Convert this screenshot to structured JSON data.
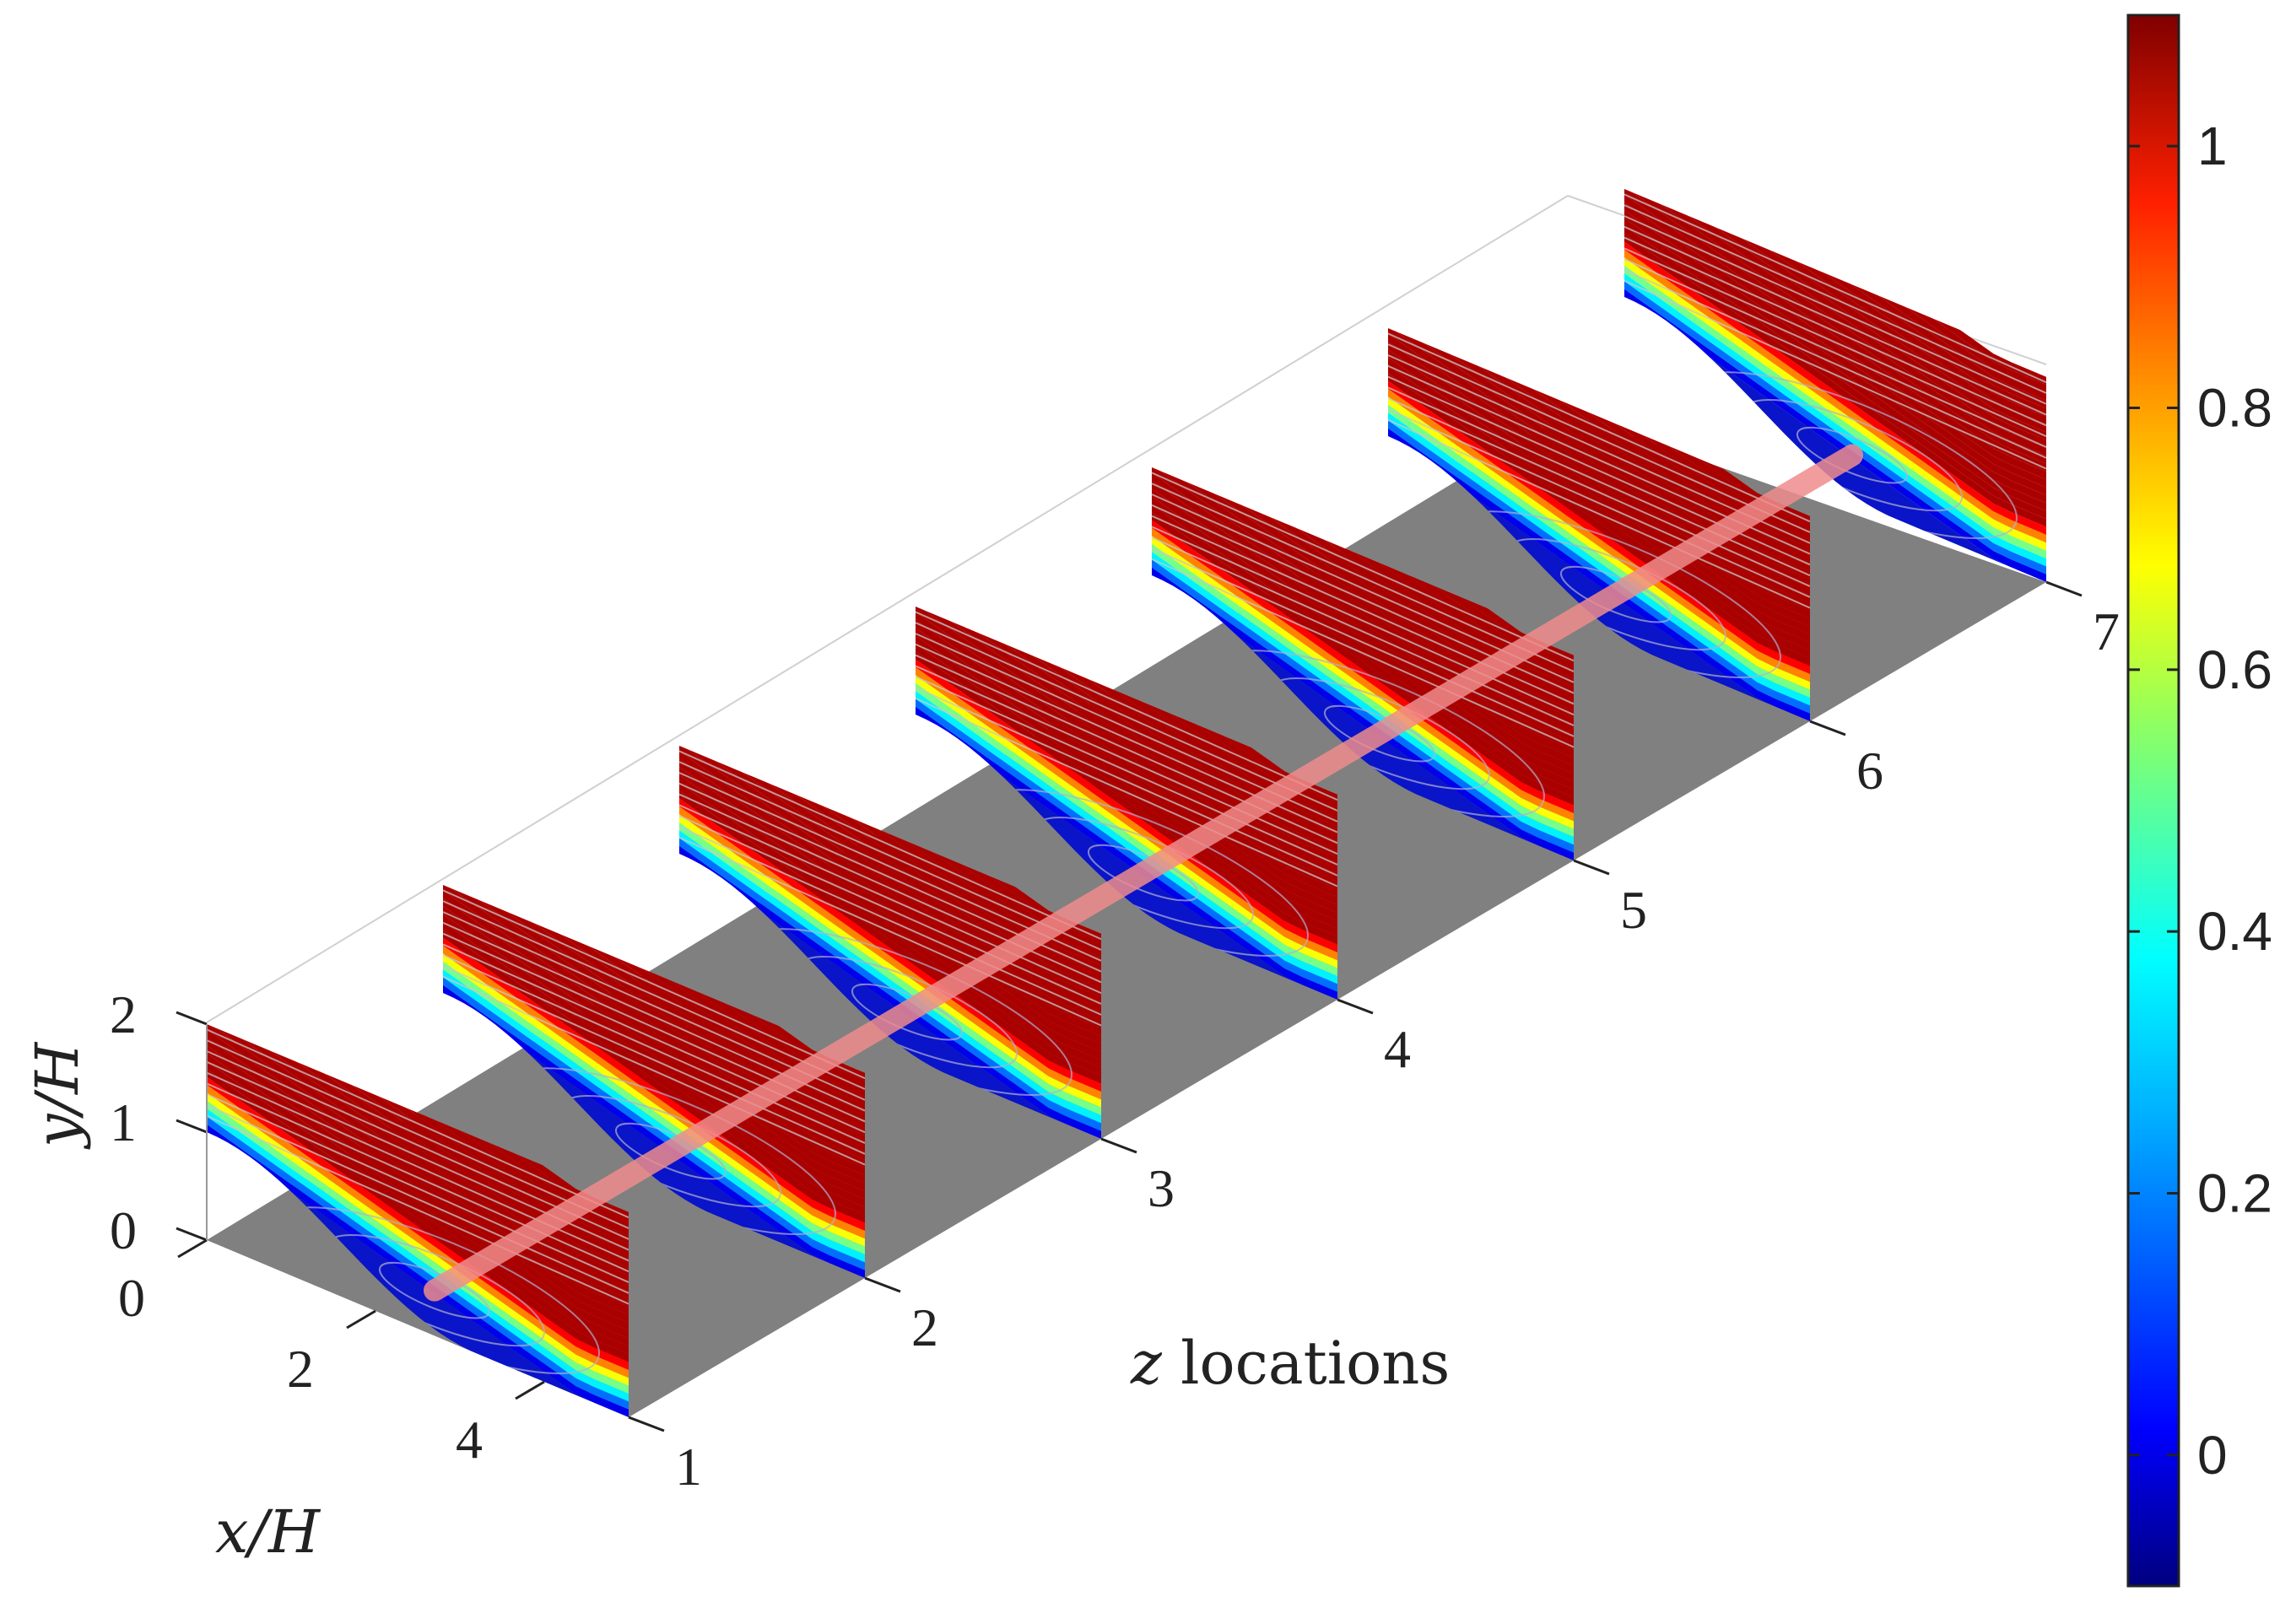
{
  "chart_data": {
    "type": "3d-slices",
    "z_axis": {
      "label_var": "z",
      "label_text": " locations",
      "ticks": [
        "1",
        "2",
        "3",
        "4",
        "5",
        "6",
        "7"
      ]
    },
    "x_axis": {
      "label": "x/H",
      "ticks": [
        "0",
        "2",
        "4"
      ]
    },
    "y_axis": {
      "label": "y/H",
      "ticks": [
        "0",
        "1",
        "2"
      ]
    },
    "slices": [
      {
        "z": 1
      },
      {
        "z": 2
      },
      {
        "z": 3
      },
      {
        "z": 4
      },
      {
        "z": 5
      },
      {
        "z": 6
      },
      {
        "z": 7
      }
    ],
    "colorbar": {
      "range": [
        -0.1,
        1.1
      ],
      "ticks": [
        0,
        0.2,
        0.4,
        0.6,
        0.8,
        1
      ],
      "tick_labels": [
        "0",
        "0.2",
        "0.4",
        "0.6",
        "0.8",
        "1"
      ],
      "colormap": "jet"
    },
    "floor_color": "#808080",
    "core_line_color": "#f08c8c"
  }
}
